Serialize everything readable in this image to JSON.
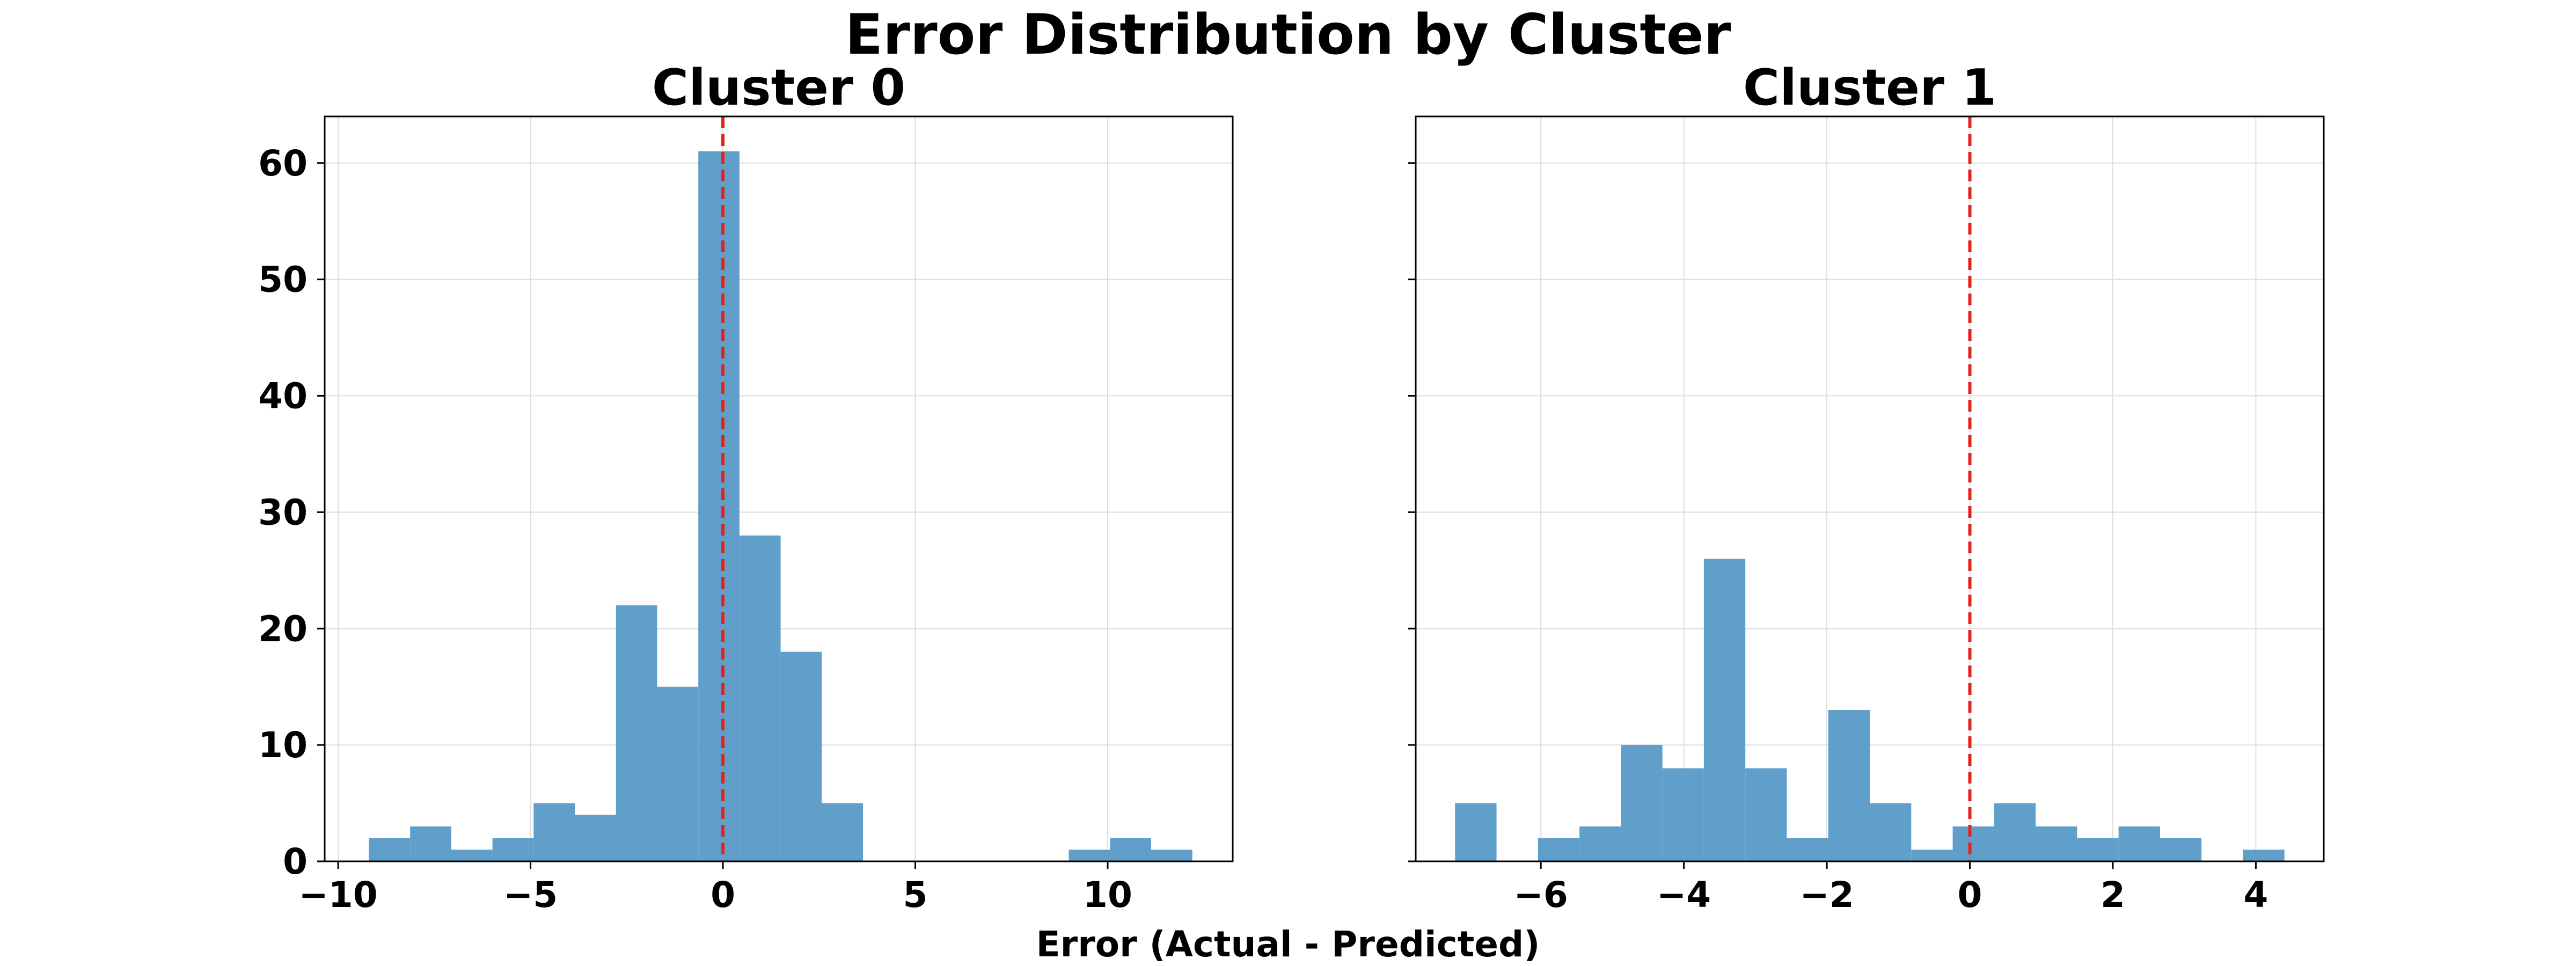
{
  "title": "Error Distribution by Cluster",
  "xlabel": "Error (Actual - Predicted)",
  "colors": {
    "bar": "#5f9fca",
    "refline": "#e3231b",
    "grid": "#dddddd",
    "axis": "#000000"
  },
  "chart_data": [
    {
      "type": "bar",
      "title": "Cluster 0",
      "xlim": [
        -10.35,
        13.25
      ],
      "ylim": [
        0,
        64
      ],
      "xticks": [
        -10,
        -5,
        0,
        5,
        10
      ],
      "xtick_labels": [
        "−10",
        "−5",
        "0",
        "5",
        "10"
      ],
      "yticks": [
        0,
        10,
        20,
        30,
        40,
        50,
        60
      ],
      "ytick_labels": [
        "0",
        "10",
        "20",
        "30",
        "40",
        "50",
        "60"
      ],
      "grid": true,
      "reference_line_x": 0,
      "bins": [
        {
          "x0": -9.2,
          "x1": -8.13,
          "count": 2
        },
        {
          "x0": -8.13,
          "x1": -7.06,
          "count": 3
        },
        {
          "x0": -7.06,
          "x1": -5.99,
          "count": 1
        },
        {
          "x0": -5.99,
          "x1": -4.92,
          "count": 2
        },
        {
          "x0": -4.92,
          "x1": -3.85,
          "count": 5
        },
        {
          "x0": -3.85,
          "x1": -2.78,
          "count": 4
        },
        {
          "x0": -2.78,
          "x1": -1.71,
          "count": 22
        },
        {
          "x0": -1.71,
          "x1": -0.64,
          "count": 15
        },
        {
          "x0": -0.64,
          "x1": 0.43,
          "count": 61
        },
        {
          "x0": 0.43,
          "x1": 1.5,
          "count": 28
        },
        {
          "x0": 1.5,
          "x1": 2.57,
          "count": 18
        },
        {
          "x0": 2.57,
          "x1": 3.64,
          "count": 5
        },
        {
          "x0": 3.64,
          "x1": 4.71,
          "count": 0
        },
        {
          "x0": 4.71,
          "x1": 5.78,
          "count": 0
        },
        {
          "x0": 5.78,
          "x1": 6.85,
          "count": 0
        },
        {
          "x0": 6.85,
          "x1": 7.92,
          "count": 0
        },
        {
          "x0": 7.92,
          "x1": 8.99,
          "count": 0
        },
        {
          "x0": 8.99,
          "x1": 10.06,
          "count": 1
        },
        {
          "x0": 10.06,
          "x1": 11.13,
          "count": 2
        },
        {
          "x0": 11.13,
          "x1": 12.2,
          "count": 1
        }
      ]
    },
    {
      "type": "bar",
      "title": "Cluster 1",
      "xlim": [
        -7.75,
        4.95
      ],
      "ylim": [
        0,
        64
      ],
      "xticks": [
        -6,
        -4,
        -2,
        0,
        2,
        4
      ],
      "xtick_labels": [
        "−6",
        "−4",
        "−2",
        "0",
        "2",
        "4"
      ],
      "yticks": [
        0,
        10,
        20,
        30,
        40,
        50,
        60
      ],
      "ytick_labels": [],
      "grid": true,
      "reference_line_x": 0,
      "bins": [
        {
          "x0": -7.2,
          "x1": -6.62,
          "count": 5
        },
        {
          "x0": -6.62,
          "x1": -6.04,
          "count": 0
        },
        {
          "x0": -6.04,
          "x1": -5.46,
          "count": 2
        },
        {
          "x0": -5.46,
          "x1": -4.88,
          "count": 3
        },
        {
          "x0": -4.88,
          "x1": -4.3,
          "count": 10
        },
        {
          "x0": -4.3,
          "x1": -3.72,
          "count": 8
        },
        {
          "x0": -3.72,
          "x1": -3.14,
          "count": 26
        },
        {
          "x0": -3.14,
          "x1": -2.56,
          "count": 8
        },
        {
          "x0": -2.56,
          "x1": -1.98,
          "count": 2
        },
        {
          "x0": -1.98,
          "x1": -1.4,
          "count": 13
        },
        {
          "x0": -1.4,
          "x1": -0.82,
          "count": 5
        },
        {
          "x0": -0.82,
          "x1": -0.24,
          "count": 1
        },
        {
          "x0": -0.24,
          "x1": 0.34,
          "count": 3
        },
        {
          "x0": 0.34,
          "x1": 0.92,
          "count": 5
        },
        {
          "x0": 0.92,
          "x1": 1.5,
          "count": 3
        },
        {
          "x0": 1.5,
          "x1": 2.08,
          "count": 2
        },
        {
          "x0": 2.08,
          "x1": 2.66,
          "count": 3
        },
        {
          "x0": 2.66,
          "x1": 3.24,
          "count": 2
        },
        {
          "x0": 3.24,
          "x1": 3.82,
          "count": 0
        },
        {
          "x0": 3.82,
          "x1": 4.4,
          "count": 1
        }
      ]
    }
  ]
}
